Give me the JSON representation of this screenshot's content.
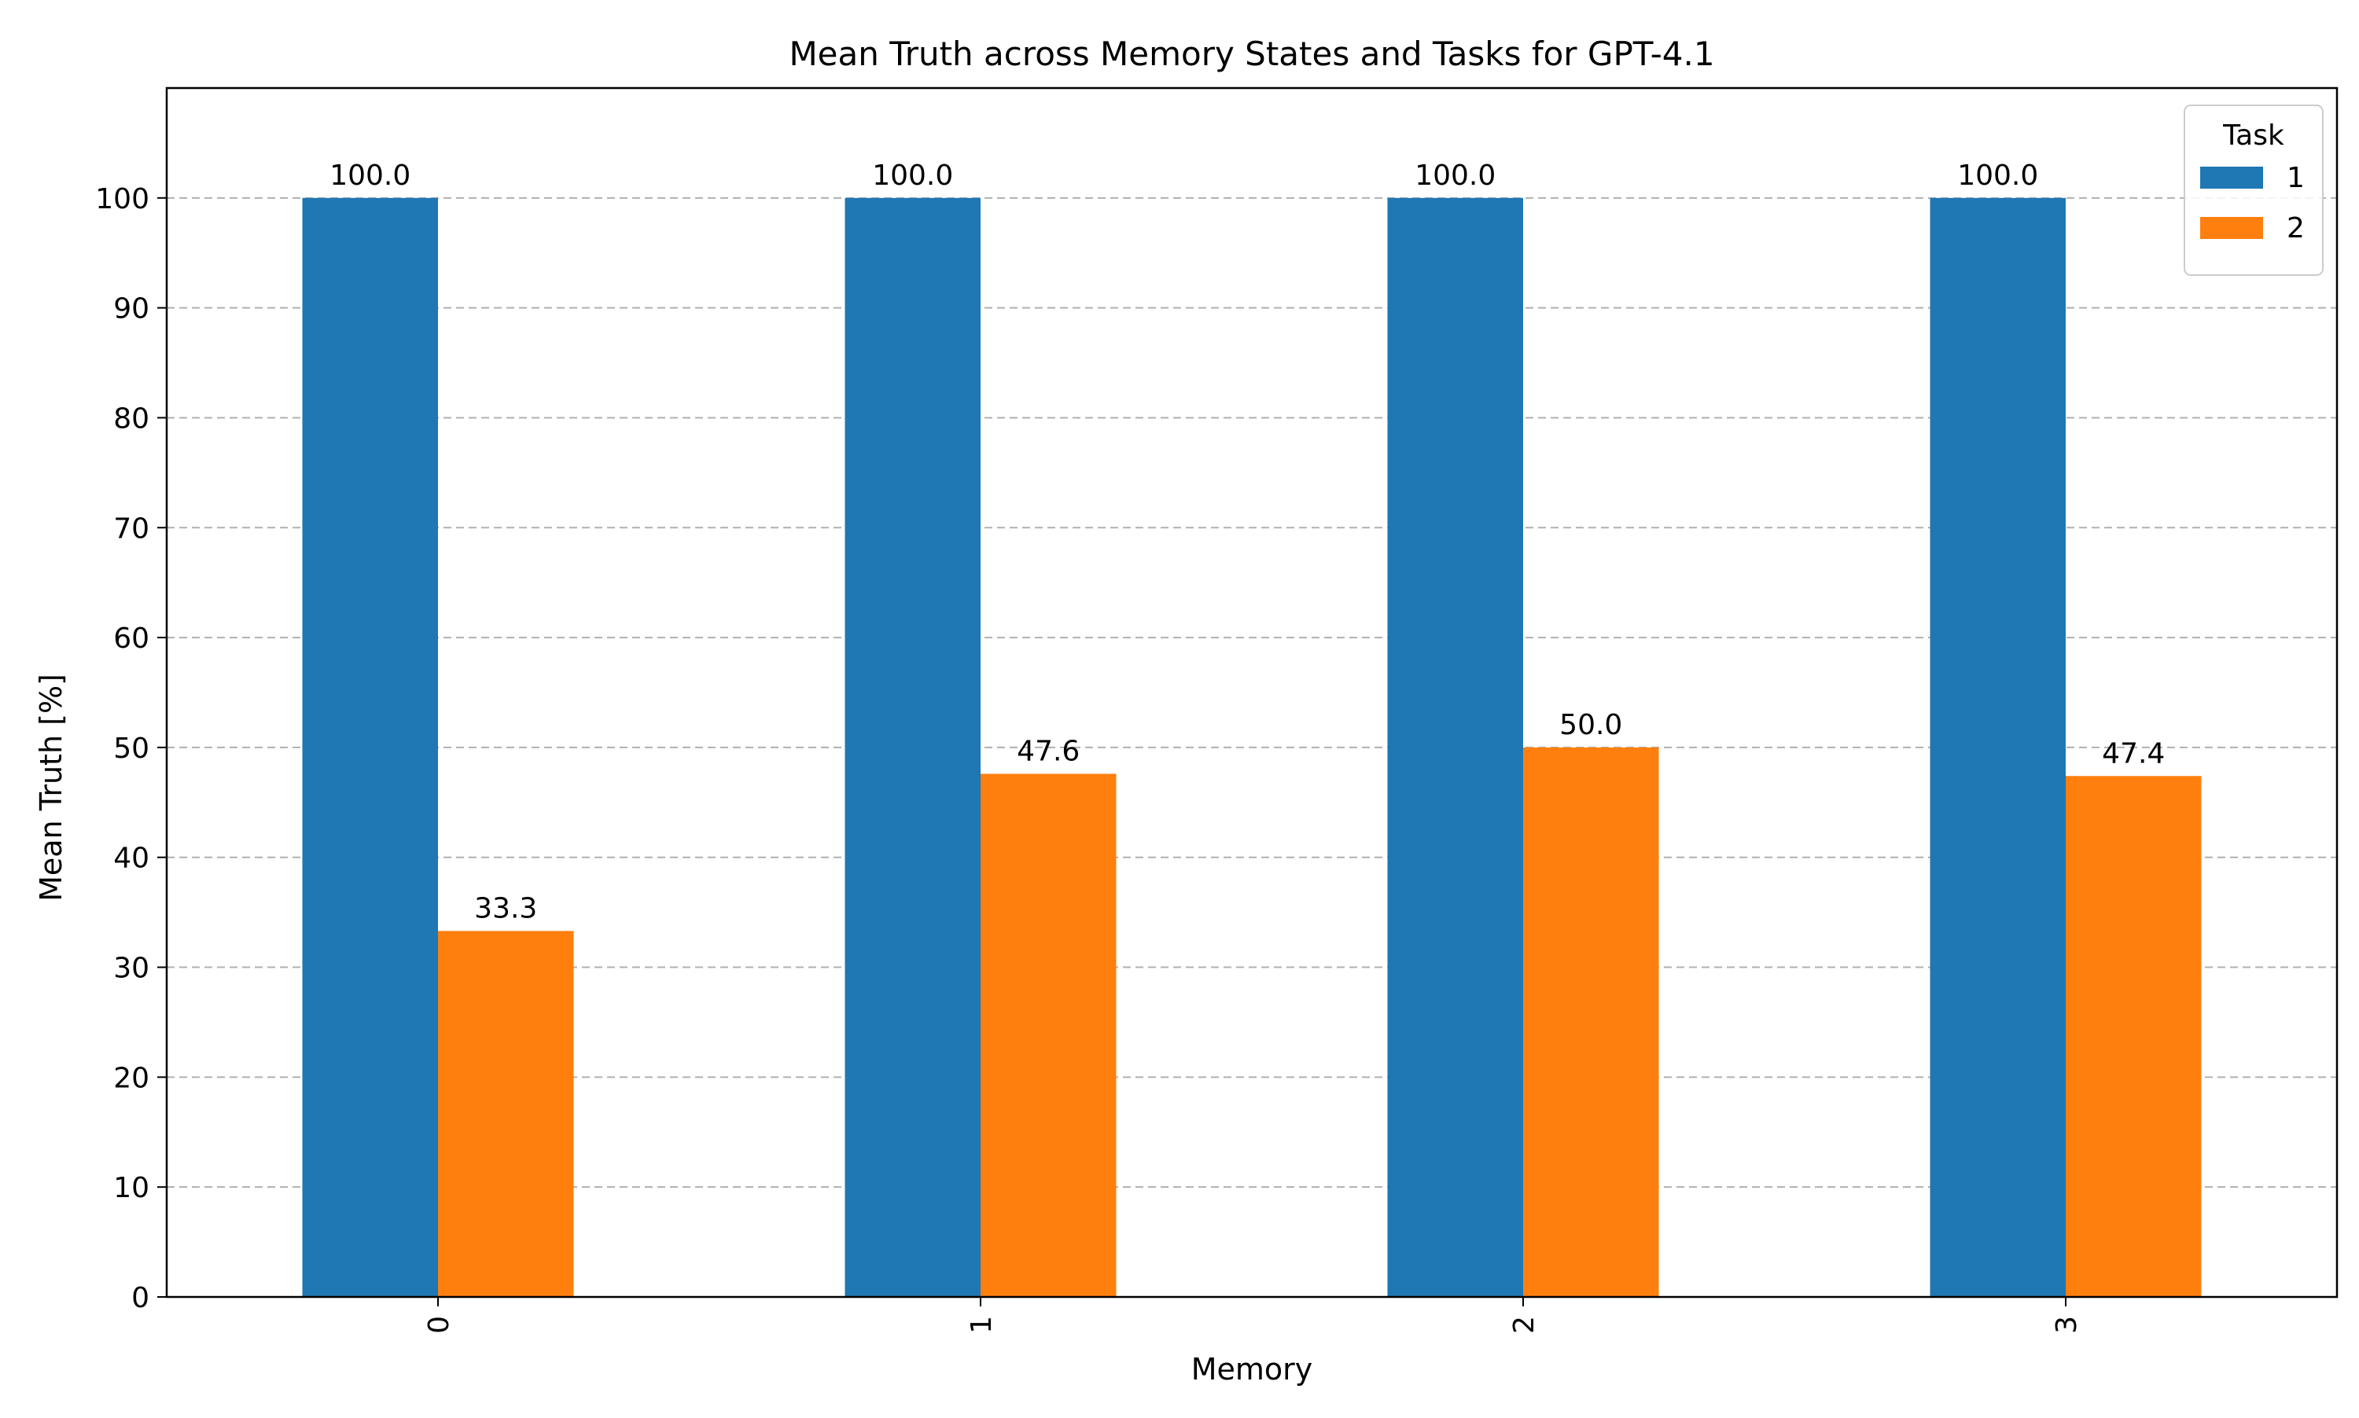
{
  "chart_data": {
    "type": "bar",
    "title": "Mean Truth across Memory States and Tasks for GPT-4.1",
    "xlabel": "Memory",
    "ylabel": "Mean Truth [%]",
    "categories": [
      "0",
      "1",
      "2",
      "3"
    ],
    "series": [
      {
        "name": "1",
        "values": [
          100.0,
          100.0,
          100.0,
          100.0
        ],
        "labels": [
          "100.0",
          "100.0",
          "100.0",
          "100.0"
        ],
        "color": "#1f77b4"
      },
      {
        "name": "2",
        "values": [
          33.3,
          47.6,
          50.0,
          47.4
        ],
        "labels": [
          "33.3",
          "47.6",
          "50.0",
          "47.4"
        ],
        "color": "#ff7f0e"
      }
    ],
    "ylim": [
      0,
      110
    ],
    "yticks": [
      "0",
      "10",
      "20",
      "30",
      "40",
      "50",
      "60",
      "70",
      "80",
      "90",
      "100"
    ],
    "grid": "y-dashed",
    "legend": {
      "title": "Task",
      "placement": "top-right"
    }
  }
}
